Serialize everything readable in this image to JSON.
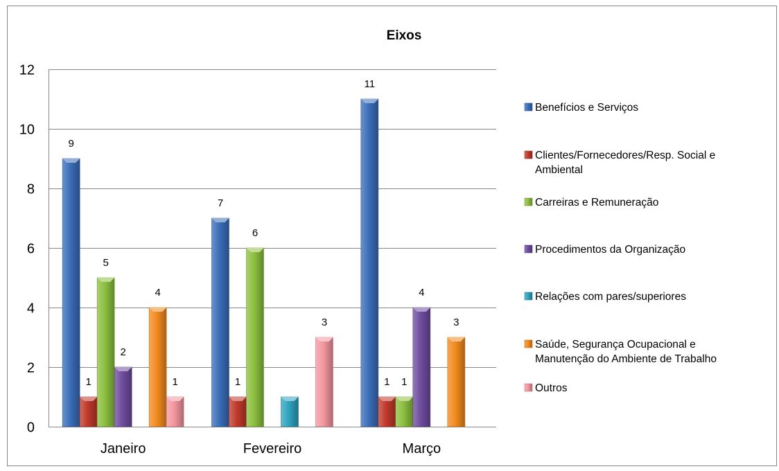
{
  "chart_data": {
    "type": "bar",
    "title": "Eixos",
    "xlabel": "",
    "ylabel": "",
    "ylim": [
      0,
      12
    ],
    "ytick_step": 2,
    "grid": true,
    "legend_placement": "right",
    "categories": [
      "Janeiro",
      "Fevereiro",
      "Março"
    ],
    "series": [
      {
        "name": "Benefícios e Serviços",
        "legend_lines": [
          "Benefícios e Serviços"
        ],
        "color": "#3A6DB8",
        "values": [
          9,
          7,
          11
        ]
      },
      {
        "name": "Clientes/Fornecedores/Resp. Social e Ambiental",
        "legend_lines": [
          "Clientes/Fornecedores/Resp. Social e",
          "Ambiental"
        ],
        "color": "#C0392B",
        "values": [
          1,
          1,
          1
        ]
      },
      {
        "name": "Carreiras e Remuneração",
        "legend_lines": [
          "Carreiras e Remuneração"
        ],
        "color": "#8CBF3F",
        "values": [
          5,
          6,
          1
        ]
      },
      {
        "name": "Procedimentos da Organização",
        "legend_lines": [
          "Procedimentos da Organização"
        ],
        "color": "#6E4C9E",
        "values": [
          2,
          0,
          4
        ]
      },
      {
        "name": "Relações com pares/superiores",
        "legend_lines": [
          "Relações com pares/superiores"
        ],
        "color": "#2EA3BE",
        "values": [
          0,
          1,
          0
        ]
      },
      {
        "name": "Saúde, Segurança Ocupacional e Manutenção do Ambiente de Trabalho",
        "legend_lines": [
          "Saúde, Segurança Ocupacional e",
          "Manutenção do Ambiente de Trabalho"
        ],
        "color": "#F28A1E",
        "values": [
          4,
          0,
          3
        ]
      },
      {
        "name": "Outros",
        "legend_lines": [
          "Outros"
        ],
        "color": "#F4969E",
        "values": [
          1,
          3,
          0
        ]
      }
    ],
    "data_labels": [
      [
        9,
        7,
        11
      ],
      [
        1,
        1,
        1
      ],
      [
        5,
        6,
        1
      ],
      [
        2,
        null,
        4
      ],
      [
        null,
        null,
        null
      ],
      [
        4,
        null,
        3
      ],
      [
        1,
        3,
        null
      ]
    ]
  }
}
